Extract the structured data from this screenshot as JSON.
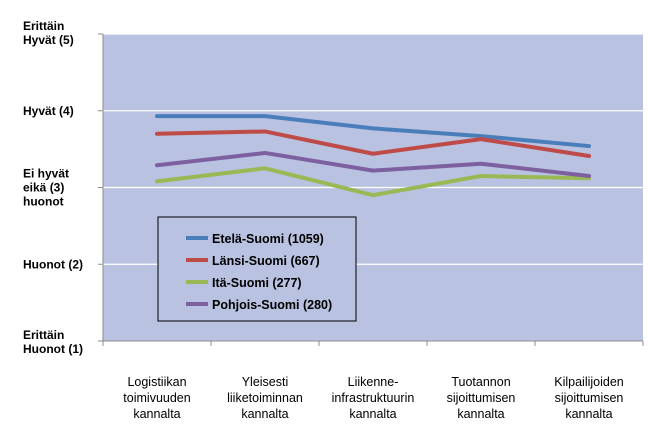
{
  "chart_data": {
    "type": "line",
    "categories": [
      [
        "Logistiikan",
        "toimivuuden",
        "kannalta"
      ],
      [
        "Yleisesti",
        "liiketoiminnan",
        "kannalta"
      ],
      [
        "Liikenne-",
        "infrastruktuurin",
        "kannalta"
      ],
      [
        "Tuotannon",
        "sijoittumisen",
        "kannalta"
      ],
      [
        "Kilpailijoiden",
        "sijoittumisen",
        "kannalta"
      ]
    ],
    "y_ticks": [
      {
        "value": 5,
        "lines": [
          "Erittäin",
          "Hyvät (5)"
        ]
      },
      {
        "value": 4,
        "lines": [
          "Hyvät (4)"
        ]
      },
      {
        "value": 3,
        "lines": [
          "Ei hyvät",
          "eikä   (3)",
          "huonot"
        ]
      },
      {
        "value": 2,
        "lines": [
          "Huonot (2)"
        ]
      },
      {
        "value": 1,
        "lines": [
          "Erittäin",
          "Huonot (1)"
        ]
      }
    ],
    "ylim": [
      1,
      5
    ],
    "grid": true,
    "plot_background": "#b9c2e0",
    "legend_position": "lower-left inside plot",
    "series": [
      {
        "name": "Etelä-Suomi (1059)",
        "color": "#4a7ebb",
        "values": [
          3.93,
          3.93,
          3.77,
          3.67,
          3.54
        ]
      },
      {
        "name": "Länsi-Suomi (667)",
        "color": "#be4b48",
        "values": [
          3.7,
          3.73,
          3.44,
          3.63,
          3.41
        ]
      },
      {
        "name": "Itä-Suomi (277)",
        "color": "#98b954",
        "values": [
          3.08,
          3.25,
          2.9,
          3.15,
          3.12
        ]
      },
      {
        "name": "Pohjois-Suomi (280)",
        "color": "#7d60a0",
        "values": [
          3.29,
          3.45,
          3.22,
          3.31,
          3.15
        ]
      }
    ]
  }
}
